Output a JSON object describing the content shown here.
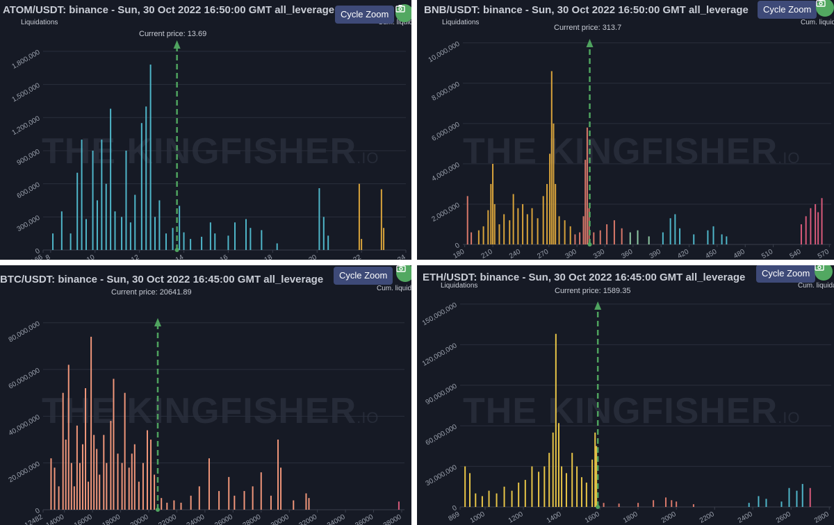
{
  "common": {
    "cycle_zoom": "Cycle Zoom",
    "y_label": "Liquidations",
    "cum_label": "Cum. liquidations",
    "watermark": "THE KINGFISHER",
    "watermark_suffix": ".IO",
    "colors": {
      "background": "#161a25",
      "price_line": "#4fa35f",
      "grid": "#2a2f3c",
      "button": "#3e4a78"
    }
  },
  "charts": [
    {
      "title": "ATOM/USDT: binance - Sun, 30 Oct 2022 16:50:00 GMT all_leverage",
      "current_price": "Current price: 13.69",
      "chart_data": {
        "type": "bar",
        "xlim": [
          7.66,
          24
        ],
        "ylim": [
          0,
          1900000
        ],
        "x_ticks": [
          7.66,
          8,
          10,
          12,
          14,
          16,
          18,
          20,
          22,
          24
        ],
        "y_ticks": [
          0,
          300000,
          600000,
          900000,
          1200000,
          1500000,
          1800000
        ],
        "current_price": 13.69,
        "bars": [
          [
            8.1,
            150000,
            "#4fb6c9"
          ],
          [
            8.5,
            350000,
            "#4fb6c9"
          ],
          [
            8.9,
            150000,
            "#4fb6c9"
          ],
          [
            9.2,
            700000,
            "#4fb6c9"
          ],
          [
            9.4,
            1000000,
            "#4fb6c9"
          ],
          [
            9.6,
            280000,
            "#4fb6c9"
          ],
          [
            9.9,
            900000,
            "#4fb6c9"
          ],
          [
            10.1,
            450000,
            "#4fb6c9"
          ],
          [
            10.3,
            1000000,
            "#4fb6c9"
          ],
          [
            10.5,
            600000,
            "#4fb6c9"
          ],
          [
            10.7,
            1280000,
            "#4fb6c9"
          ],
          [
            10.9,
            350000,
            "#4fb6c9"
          ],
          [
            11.2,
            300000,
            "#4fb6c9"
          ],
          [
            11.4,
            900000,
            "#4fb6c9"
          ],
          [
            11.6,
            250000,
            "#4fb6c9"
          ],
          [
            11.8,
            500000,
            "#4fb6c9"
          ],
          [
            12.1,
            1150000,
            "#4fb6c9"
          ],
          [
            12.3,
            1300000,
            "#4fb6c9"
          ],
          [
            12.5,
            1680000,
            "#4fb6c9"
          ],
          [
            12.7,
            300000,
            "#4fb6c9"
          ],
          [
            12.9,
            450000,
            "#4fb6c9"
          ],
          [
            13.2,
            150000,
            "#4fb6c9"
          ],
          [
            13.5,
            200000,
            "#4fb6c9"
          ],
          [
            13.8,
            400000,
            "#4fb6c9"
          ],
          [
            14.0,
            160000,
            "#4fb6c9"
          ],
          [
            14.3,
            100000,
            "#4fb6c9"
          ],
          [
            14.8,
            120000,
            "#4fb6c9"
          ],
          [
            15.2,
            250000,
            "#4fb6c9"
          ],
          [
            15.4,
            150000,
            "#4fb6c9"
          ],
          [
            16.0,
            130000,
            "#4fb6c9"
          ],
          [
            16.3,
            250000,
            "#4fb6c9"
          ],
          [
            16.8,
            280000,
            "#4fb6c9"
          ],
          [
            17.0,
            200000,
            "#4fb6c9"
          ],
          [
            17.5,
            180000,
            "#4fb6c9"
          ],
          [
            18.2,
            60000,
            "#4fb6c9"
          ],
          [
            20.1,
            560000,
            "#4fb6c9"
          ],
          [
            20.3,
            300000,
            "#4fb6c9"
          ],
          [
            20.5,
            130000,
            "#4fb6c9"
          ],
          [
            21.9,
            600000,
            "#d8a33b"
          ],
          [
            22.0,
            100000,
            "#d8a33b"
          ],
          [
            22.9,
            550000,
            "#d8a33b"
          ],
          [
            23.0,
            200000,
            "#d8a33b"
          ]
        ]
      }
    },
    {
      "title": "BNB/USDT: binance - Sun, 30 Oct 2022 16:50:00 GMT all_leverage",
      "current_price": "Current price: 313.7",
      "chart_data": {
        "type": "bar",
        "xlim": [
          178,
          572
        ],
        "ylim": [
          0,
          10200000
        ],
        "x_ticks": [
          180,
          210,
          240,
          270,
          300,
          330,
          360,
          390,
          420,
          450,
          480,
          510,
          540,
          570
        ],
        "y_ticks": [
          0,
          2000000,
          4000000,
          6000000,
          8000000,
          10000000
        ],
        "current_price": 313.7,
        "bars": [
          [
            183,
            2400000,
            "#d9786a"
          ],
          [
            187,
            600000,
            "#d9786a"
          ],
          [
            195,
            700000,
            "#d8a33b"
          ],
          [
            200,
            900000,
            "#d8a33b"
          ],
          [
            205,
            1700000,
            "#d8a33b"
          ],
          [
            208,
            3000000,
            "#d8a33b"
          ],
          [
            210,
            4000000,
            "#d8a33b"
          ],
          [
            212,
            2000000,
            "#d8a33b"
          ],
          [
            217,
            1000000,
            "#d8a33b"
          ],
          [
            222,
            1500000,
            "#d8a33b"
          ],
          [
            228,
            1200000,
            "#d8a33b"
          ],
          [
            232,
            2500000,
            "#d8a33b"
          ],
          [
            237,
            1800000,
            "#d8a33b"
          ],
          [
            242,
            2000000,
            "#d8a33b"
          ],
          [
            247,
            1500000,
            "#d8a33b"
          ],
          [
            252,
            1800000,
            "#d8a33b"
          ],
          [
            258,
            1300000,
            "#d8a33b"
          ],
          [
            264,
            2400000,
            "#d8a33b"
          ],
          [
            268,
            3000000,
            "#d8a33b"
          ],
          [
            271,
            4500000,
            "#d8a33b"
          ],
          [
            273,
            8600000,
            "#d8a33b"
          ],
          [
            275,
            6000000,
            "#d8a33b"
          ],
          [
            277,
            3000000,
            "#d8a33b"
          ],
          [
            281,
            1400000,
            "#d8a33b"
          ],
          [
            287,
            1200000,
            "#d8a33b"
          ],
          [
            293,
            900000,
            "#d8a33b"
          ],
          [
            298,
            500000,
            "#d9786a"
          ],
          [
            303,
            600000,
            "#d9786a"
          ],
          [
            307,
            1400000,
            "#d9786a"
          ],
          [
            309,
            4200000,
            "#d9786a"
          ],
          [
            311,
            5800000,
            "#d9786a"
          ],
          [
            313,
            1800000,
            "#d9786a"
          ],
          [
            318,
            600000,
            "#d9786a"
          ],
          [
            325,
            700000,
            "#d9786a"
          ],
          [
            332,
            1000000,
            "#d9786a"
          ],
          [
            340,
            1200000,
            "#d9786a"
          ],
          [
            348,
            800000,
            "#d9786a"
          ],
          [
            357,
            600000,
            "#8fc9a3"
          ],
          [
            365,
            700000,
            "#8fc9a3"
          ],
          [
            377,
            400000,
            "#8fc9a3"
          ],
          [
            392,
            600000,
            "#4fb6c9"
          ],
          [
            400,
            1300000,
            "#4fb6c9"
          ],
          [
            405,
            1500000,
            "#4fb6c9"
          ],
          [
            410,
            800000,
            "#4fb6c9"
          ],
          [
            425,
            500000,
            "#4fb6c9"
          ],
          [
            440,
            700000,
            "#4fb6c9"
          ],
          [
            446,
            900000,
            "#4fb6c9"
          ],
          [
            455,
            500000,
            "#4fb6c9"
          ],
          [
            460,
            400000,
            "#4fb6c9"
          ],
          [
            540,
            1000000,
            "#d85a7a"
          ],
          [
            545,
            1400000,
            "#d85a7a"
          ],
          [
            550,
            1800000,
            "#d85a7a"
          ],
          [
            555,
            2000000,
            "#d85a7a"
          ],
          [
            558,
            1600000,
            "#d85a7a"
          ],
          [
            562,
            2300000,
            "#d85a7a"
          ]
        ]
      }
    },
    {
      "title": "BTC/USDT: binance - Sun, 30 Oct 2022 16:45:00 GMT all_leverage",
      "current_price": "Current price: 20641.89",
      "chart_data": {
        "type": "bar",
        "xlim": [
          12482,
          38200
        ],
        "ylim": [
          0,
          82000000
        ],
        "x_ticks": [
          12482,
          14000,
          16000,
          18000,
          20000,
          22000,
          24000,
          26000,
          28000,
          30000,
          32000,
          34000,
          36000,
          38000
        ],
        "y_ticks": [
          0,
          20000000,
          40000000,
          60000000,
          80000000
        ],
        "current_price": 20641.89,
        "bars": [
          [
            13050,
            22000000,
            "#f0967a"
          ],
          [
            13300,
            18000000,
            "#f0967a"
          ],
          [
            13600,
            10000000,
            "#f0967a"
          ],
          [
            13900,
            50000000,
            "#f0967a"
          ],
          [
            14100,
            30000000,
            "#f0967a"
          ],
          [
            14300,
            62000000,
            "#f0967a"
          ],
          [
            14500,
            20000000,
            "#f0967a"
          ],
          [
            14700,
            10000000,
            "#f0967a"
          ],
          [
            14900,
            36000000,
            "#f0967a"
          ],
          [
            15100,
            20000000,
            "#f0967a"
          ],
          [
            15300,
            28000000,
            "#f0967a"
          ],
          [
            15500,
            52000000,
            "#f0967a"
          ],
          [
            15700,
            12000000,
            "#f0967a"
          ],
          [
            15900,
            74000000,
            "#f0967a"
          ],
          [
            16100,
            32000000,
            "#f0967a"
          ],
          [
            16300,
            26000000,
            "#f0967a"
          ],
          [
            16500,
            15000000,
            "#f0967a"
          ],
          [
            16800,
            32000000,
            "#f0967a"
          ],
          [
            17000,
            20000000,
            "#f0967a"
          ],
          [
            17300,
            38000000,
            "#f0967a"
          ],
          [
            17500,
            56000000,
            "#f0967a"
          ],
          [
            17800,
            24000000,
            "#f0967a"
          ],
          [
            18100,
            20000000,
            "#f0967a"
          ],
          [
            18300,
            50000000,
            "#f0967a"
          ],
          [
            18600,
            18000000,
            "#f0967a"
          ],
          [
            18800,
            24000000,
            "#f0967a"
          ],
          [
            19000,
            28000000,
            "#f0967a"
          ],
          [
            19300,
            12000000,
            "#f0967a"
          ],
          [
            19600,
            20000000,
            "#f0967a"
          ],
          [
            19900,
            34000000,
            "#f0967a"
          ],
          [
            20150,
            30000000,
            "#f0967a"
          ],
          [
            20400,
            15000000,
            "#f0967a"
          ],
          [
            20900,
            5000000,
            "#f0967a"
          ],
          [
            21300,
            3000000,
            "#f0967a"
          ],
          [
            21800,
            4000000,
            "#f0967a"
          ],
          [
            22300,
            3000000,
            "#f0967a"
          ],
          [
            23000,
            6000000,
            "#f0967a"
          ],
          [
            23600,
            10000000,
            "#f0967a"
          ],
          [
            24300,
            22000000,
            "#f0967a"
          ],
          [
            25000,
            8000000,
            "#f0967a"
          ],
          [
            25700,
            14000000,
            "#f0967a"
          ],
          [
            26100,
            6000000,
            "#f0967a"
          ],
          [
            26800,
            8000000,
            "#f0967a"
          ],
          [
            27400,
            10000000,
            "#f0967a"
          ],
          [
            28000,
            16000000,
            "#f0967a"
          ],
          [
            28700,
            6000000,
            "#f0967a"
          ],
          [
            29200,
            30000000,
            "#f0967a"
          ],
          [
            29400,
            18000000,
            "#f0967a"
          ],
          [
            30300,
            4000000,
            "#f0967a"
          ],
          [
            31200,
            7000000,
            "#f0967a"
          ],
          [
            31400,
            5000000,
            "#f0967a"
          ],
          [
            37800,
            3500000,
            "#d85a7a"
          ]
        ]
      }
    },
    {
      "title": "ETH/USDT: binance - Sun, 30 Oct 2022 16:45:00 GMT all_leverage",
      "current_price": "Current price: 1589.35",
      "chart_data": {
        "type": "bar",
        "xlim": [
          869,
          2810
        ],
        "ylim": [
          0,
          152000000
        ],
        "x_ticks": [
          869,
          1000,
          1200,
          1400,
          1600,
          1800,
          2000,
          2200,
          2400,
          2600,
          2800
        ],
        "y_ticks": [
          0,
          30000000,
          60000000,
          90000000,
          120000000,
          150000000
        ],
        "current_price": 1589.35,
        "bars": [
          [
            895,
            30000000,
            "#e8c547"
          ],
          [
            920,
            25000000,
            "#e8c547"
          ],
          [
            950,
            10000000,
            "#e8c547"
          ],
          [
            985,
            8000000,
            "#e8c547"
          ],
          [
            1020,
            12000000,
            "#e8c547"
          ],
          [
            1060,
            10000000,
            "#e8c547"
          ],
          [
            1100,
            15000000,
            "#e8c547"
          ],
          [
            1140,
            12000000,
            "#e8c547"
          ],
          [
            1175,
            18000000,
            "#e8c547"
          ],
          [
            1210,
            20000000,
            "#e8c547"
          ],
          [
            1245,
            30000000,
            "#e8c547"
          ],
          [
            1280,
            26000000,
            "#e8c547"
          ],
          [
            1310,
            30000000,
            "#e8c547"
          ],
          [
            1335,
            40000000,
            "#e8c547"
          ],
          [
            1355,
            55000000,
            "#e8c547"
          ],
          [
            1370,
            128000000,
            "#e8c547"
          ],
          [
            1385,
            62000000,
            "#e8c547"
          ],
          [
            1400,
            30000000,
            "#e8c547"
          ],
          [
            1425,
            25000000,
            "#e8c547"
          ],
          [
            1455,
            40000000,
            "#e8c547"
          ],
          [
            1480,
            30000000,
            "#e8c547"
          ],
          [
            1505,
            22000000,
            "#e8c547"
          ],
          [
            1530,
            18000000,
            "#e8c547"
          ],
          [
            1560,
            35000000,
            "#e8c547"
          ],
          [
            1575,
            55000000,
            "#e8c547"
          ],
          [
            1582,
            45000000,
            "#e8c547"
          ],
          [
            1620,
            3000000,
            "#d9786a"
          ],
          [
            1700,
            2500000,
            "#d9786a"
          ],
          [
            1800,
            3000000,
            "#d9786a"
          ],
          [
            1880,
            5000000,
            "#d9786a"
          ],
          [
            1945,
            7000000,
            "#d9786a"
          ],
          [
            1975,
            5000000,
            "#d9786a"
          ],
          [
            2000,
            4000000,
            "#d9786a"
          ],
          [
            2090,
            2000000,
            "#d9786a"
          ],
          [
            2380,
            3000000,
            "#4fb6c9"
          ],
          [
            2430,
            8000000,
            "#4fb6c9"
          ],
          [
            2470,
            6000000,
            "#4fb6c9"
          ],
          [
            2550,
            4000000,
            "#4fb6c9"
          ],
          [
            2590,
            14000000,
            "#4fb6c9"
          ],
          [
            2630,
            12000000,
            "#4fb6c9"
          ],
          [
            2660,
            17000000,
            "#4fb6c9"
          ],
          [
            2700,
            14000000,
            "#d85a7a"
          ]
        ]
      }
    }
  ]
}
